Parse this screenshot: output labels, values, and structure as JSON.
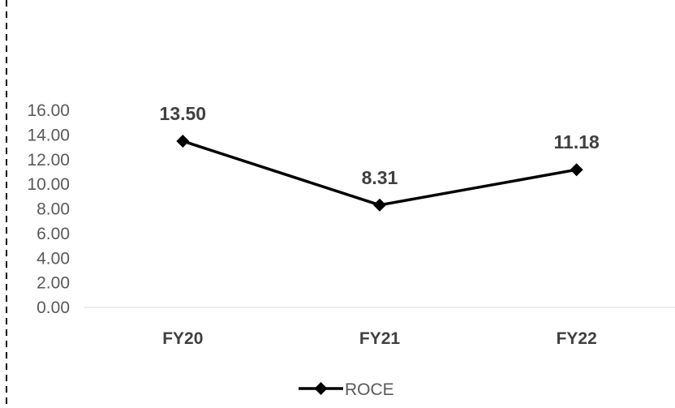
{
  "chart_data": {
    "type": "line",
    "categories": [
      "FY20",
      "FY21",
      "FY22"
    ],
    "series": [
      {
        "name": "ROCE",
        "values": [
          13.5,
          8.31,
          11.18
        ],
        "data_labels": [
          "13.50",
          "8.31",
          "11.18"
        ]
      }
    ],
    "yticks": [
      "0.00",
      "2.00",
      "4.00",
      "6.00",
      "8.00",
      "10.00",
      "12.00",
      "14.00",
      "16.00"
    ],
    "ylim": [
      0,
      16
    ],
    "grid": false,
    "legend": "bottom",
    "colors": {
      "line": "#000000",
      "axis": "#d9d9d9",
      "tick_text": "#595959",
      "label_text": "#404040"
    }
  }
}
